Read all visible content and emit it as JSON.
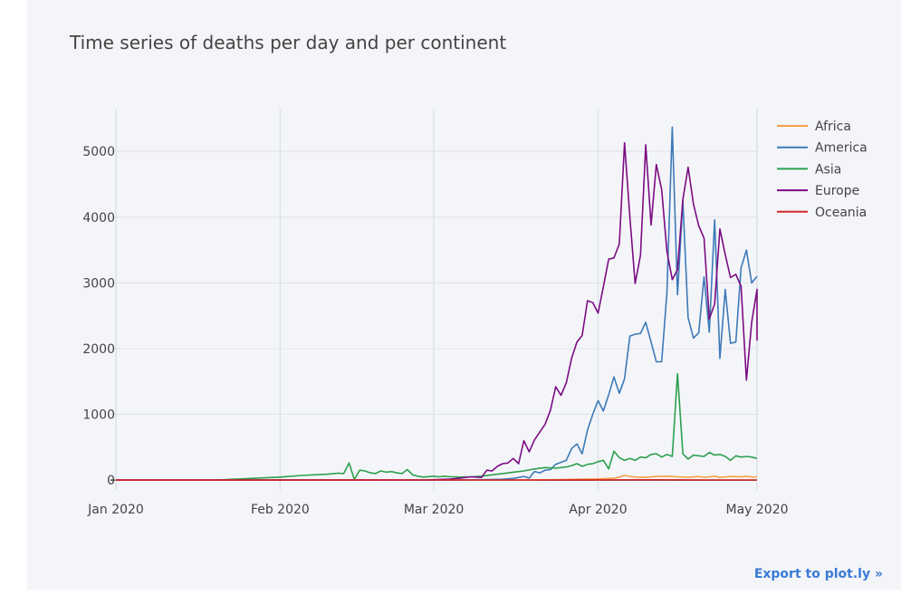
{
  "export_label": "Export to plot.ly »",
  "chart_data": {
    "type": "line",
    "title": "Time series of deaths per day and per continent",
    "xlabel": "",
    "ylabel": "",
    "x_range": [
      "2020-01-01",
      "2020-05-01"
    ],
    "ylim": [
      -150,
      5650
    ],
    "x_ticks": [
      {
        "date": "2020-01-01",
        "label": "Jan 2020"
      },
      {
        "date": "2020-02-01",
        "label": "Feb 2020"
      },
      {
        "date": "2020-03-01",
        "label": "Mar 2020"
      },
      {
        "date": "2020-04-01",
        "label": "Apr 2020"
      },
      {
        "date": "2020-05-01",
        "label": "May 2020"
      }
    ],
    "y_ticks": [
      0,
      1000,
      2000,
      3000,
      4000,
      5000
    ],
    "grid": true,
    "legend_position": "top-right",
    "series": [
      {
        "name": "Africa",
        "color": "#f4a044",
        "points": [
          [
            "2020-01-01",
            0
          ],
          [
            "2020-03-10",
            0
          ],
          [
            "2020-03-20",
            2
          ],
          [
            "2020-03-25",
            8
          ],
          [
            "2020-03-28",
            12
          ],
          [
            "2020-04-01",
            18
          ],
          [
            "2020-04-04",
            28
          ],
          [
            "2020-04-05",
            45
          ],
          [
            "2020-04-06",
            70
          ],
          [
            "2020-04-07",
            55
          ],
          [
            "2020-04-08",
            45
          ],
          [
            "2020-04-10",
            40
          ],
          [
            "2020-04-12",
            55
          ],
          [
            "2020-04-14",
            60
          ],
          [
            "2020-04-16",
            50
          ],
          [
            "2020-04-18",
            42
          ],
          [
            "2020-04-20",
            55
          ],
          [
            "2020-04-21",
            40
          ],
          [
            "2020-04-22",
            50
          ],
          [
            "2020-04-23",
            60
          ],
          [
            "2020-04-24",
            40
          ],
          [
            "2020-04-26",
            55
          ],
          [
            "2020-04-28",
            48
          ],
          [
            "2020-04-29",
            60
          ],
          [
            "2020-04-30",
            45
          ],
          [
            "2020-05-01",
            50
          ]
        ]
      },
      {
        "name": "America",
        "color": "#3d7ab8",
        "points": [
          [
            "2020-01-01",
            0
          ],
          [
            "2020-03-01",
            0
          ],
          [
            "2020-03-06",
            2
          ],
          [
            "2020-03-10",
            5
          ],
          [
            "2020-03-14",
            12
          ],
          [
            "2020-03-16",
            25
          ],
          [
            "2020-03-17",
            40
          ],
          [
            "2020-03-18",
            55
          ],
          [
            "2020-03-19",
            30
          ],
          [
            "2020-03-20",
            130
          ],
          [
            "2020-03-21",
            110
          ],
          [
            "2020-03-22",
            150
          ],
          [
            "2020-03-23",
            160
          ],
          [
            "2020-03-24",
            240
          ],
          [
            "2020-03-25",
            270
          ],
          [
            "2020-03-26",
            300
          ],
          [
            "2020-03-27",
            480
          ],
          [
            "2020-03-28",
            550
          ],
          [
            "2020-03-29",
            400
          ],
          [
            "2020-03-30",
            760
          ],
          [
            "2020-03-31",
            1000
          ],
          [
            "2020-04-01",
            1210
          ],
          [
            "2020-04-02",
            1050
          ],
          [
            "2020-04-03",
            1300
          ],
          [
            "2020-04-04",
            1570
          ],
          [
            "2020-04-05",
            1320
          ],
          [
            "2020-04-06",
            1540
          ],
          [
            "2020-04-07",
            2190
          ],
          [
            "2020-04-08",
            2220
          ],
          [
            "2020-04-09",
            2230
          ],
          [
            "2020-04-10",
            2400
          ],
          [
            "2020-04-11",
            2100
          ],
          [
            "2020-04-12",
            1800
          ],
          [
            "2020-04-13",
            1800
          ],
          [
            "2020-04-14",
            2850
          ],
          [
            "2020-04-15",
            5370
          ],
          [
            "2020-04-16",
            2820
          ],
          [
            "2020-04-17",
            4250
          ],
          [
            "2020-04-18",
            2470
          ],
          [
            "2020-04-19",
            2160
          ],
          [
            "2020-04-20",
            2240
          ],
          [
            "2020-04-21",
            3090
          ],
          [
            "2020-04-22",
            2250
          ],
          [
            "2020-04-23",
            3960
          ],
          [
            "2020-04-24",
            1850
          ],
          [
            "2020-04-25",
            2900
          ],
          [
            "2020-04-26",
            2080
          ],
          [
            "2020-04-27",
            2100
          ],
          [
            "2020-04-28",
            3230
          ],
          [
            "2020-04-29",
            3500
          ],
          [
            "2020-04-30",
            3000
          ],
          [
            "2020-05-01",
            3100
          ]
        ]
      },
      {
        "name": "Asia",
        "color": "#2ca04c",
        "points": [
          [
            "2020-01-01",
            0
          ],
          [
            "2020-01-20",
            2
          ],
          [
            "2020-01-25",
            20
          ],
          [
            "2020-02-01",
            45
          ],
          [
            "2020-02-05",
            70
          ],
          [
            "2020-02-10",
            90
          ],
          [
            "2020-02-12",
            105
          ],
          [
            "2020-02-13",
            100
          ],
          [
            "2020-02-14",
            260
          ],
          [
            "2020-02-15",
            10
          ],
          [
            "2020-02-16",
            150
          ],
          [
            "2020-02-17",
            140
          ],
          [
            "2020-02-18",
            110
          ],
          [
            "2020-02-19",
            100
          ],
          [
            "2020-02-20",
            140
          ],
          [
            "2020-02-21",
            120
          ],
          [
            "2020-02-22",
            130
          ],
          [
            "2020-02-23",
            110
          ],
          [
            "2020-02-24",
            100
          ],
          [
            "2020-02-25",
            160
          ],
          [
            "2020-02-26",
            80
          ],
          [
            "2020-02-27",
            60
          ],
          [
            "2020-02-28",
            45
          ],
          [
            "2020-03-01",
            60
          ],
          [
            "2020-03-02",
            50
          ],
          [
            "2020-03-03",
            60
          ],
          [
            "2020-03-04",
            50
          ],
          [
            "2020-03-05",
            50
          ],
          [
            "2020-03-06",
            45
          ],
          [
            "2020-03-08",
            50
          ],
          [
            "2020-03-10",
            60
          ],
          [
            "2020-03-12",
            80
          ],
          [
            "2020-03-14",
            100
          ],
          [
            "2020-03-16",
            120
          ],
          [
            "2020-03-18",
            140
          ],
          [
            "2020-03-20",
            170
          ],
          [
            "2020-03-22",
            190
          ],
          [
            "2020-03-24",
            180
          ],
          [
            "2020-03-26",
            200
          ],
          [
            "2020-03-27",
            220
          ],
          [
            "2020-03-28",
            250
          ],
          [
            "2020-03-29",
            210
          ],
          [
            "2020-03-30",
            240
          ],
          [
            "2020-03-31",
            250
          ],
          [
            "2020-04-01",
            280
          ],
          [
            "2020-04-02",
            300
          ],
          [
            "2020-04-03",
            170
          ],
          [
            "2020-04-04",
            440
          ],
          [
            "2020-04-05",
            340
          ],
          [
            "2020-04-06",
            300
          ],
          [
            "2020-04-07",
            330
          ],
          [
            "2020-04-08",
            300
          ],
          [
            "2020-04-09",
            350
          ],
          [
            "2020-04-10",
            340
          ],
          [
            "2020-04-11",
            390
          ],
          [
            "2020-04-12",
            400
          ],
          [
            "2020-04-13",
            350
          ],
          [
            "2020-04-14",
            390
          ],
          [
            "2020-04-15",
            360
          ],
          [
            "2020-04-16",
            1620
          ],
          [
            "2020-04-17",
            400
          ],
          [
            "2020-04-18",
            320
          ],
          [
            "2020-04-19",
            380
          ],
          [
            "2020-04-20",
            370
          ],
          [
            "2020-04-21",
            360
          ],
          [
            "2020-04-22",
            420
          ],
          [
            "2020-04-23",
            380
          ],
          [
            "2020-04-24",
            390
          ],
          [
            "2020-04-25",
            360
          ],
          [
            "2020-04-26",
            300
          ],
          [
            "2020-04-27",
            370
          ],
          [
            "2020-04-28",
            350
          ],
          [
            "2020-04-29",
            360
          ],
          [
            "2020-04-30",
            350
          ],
          [
            "2020-05-01",
            330
          ]
        ]
      },
      {
        "name": "Europe",
        "color": "#7b0c82",
        "points": [
          [
            "2020-01-01",
            0
          ],
          [
            "2020-02-20",
            0
          ],
          [
            "2020-02-28",
            2
          ],
          [
            "2020-03-01",
            5
          ],
          [
            "2020-03-04",
            15
          ],
          [
            "2020-03-06",
            30
          ],
          [
            "2020-03-08",
            50
          ],
          [
            "2020-03-10",
            40
          ],
          [
            "2020-03-11",
            150
          ],
          [
            "2020-03-12",
            140
          ],
          [
            "2020-03-13",
            210
          ],
          [
            "2020-03-14",
            250
          ],
          [
            "2020-03-15",
            260
          ],
          [
            "2020-03-16",
            330
          ],
          [
            "2020-03-17",
            250
          ],
          [
            "2020-03-18",
            600
          ],
          [
            "2020-03-19",
            430
          ],
          [
            "2020-03-20",
            610
          ],
          [
            "2020-03-21",
            730
          ],
          [
            "2020-03-22",
            850
          ],
          [
            "2020-03-23",
            1060
          ],
          [
            "2020-03-24",
            1420
          ],
          [
            "2020-03-25",
            1290
          ],
          [
            "2020-03-26",
            1480
          ],
          [
            "2020-03-27",
            1850
          ],
          [
            "2020-03-28",
            2100
          ],
          [
            "2020-03-29",
            2200
          ],
          [
            "2020-03-30",
            2730
          ],
          [
            "2020-03-31",
            2700
          ],
          [
            "2020-04-01",
            2540
          ],
          [
            "2020-04-02",
            2940
          ],
          [
            "2020-04-03",
            3360
          ],
          [
            "2020-04-04",
            3380
          ],
          [
            "2020-04-05",
            3590
          ],
          [
            "2020-04-06",
            5130
          ],
          [
            "2020-04-07",
            4000
          ],
          [
            "2020-04-08",
            2990
          ],
          [
            "2020-04-09",
            3420
          ],
          [
            "2020-04-10",
            5100
          ],
          [
            "2020-04-11",
            3880
          ],
          [
            "2020-04-12",
            4800
          ],
          [
            "2020-04-13",
            4420
          ],
          [
            "2020-04-14",
            3480
          ],
          [
            "2020-04-15",
            3050
          ],
          [
            "2020-04-16",
            3200
          ],
          [
            "2020-04-17",
            4270
          ],
          [
            "2020-04-18",
            4760
          ],
          [
            "2020-04-19",
            4200
          ],
          [
            "2020-04-20",
            3870
          ],
          [
            "2020-04-21",
            3680
          ],
          [
            "2020-04-22",
            2450
          ],
          [
            "2020-04-23",
            2680
          ],
          [
            "2020-04-24",
            3820
          ],
          [
            "2020-04-25",
            3430
          ],
          [
            "2020-04-26",
            3080
          ],
          [
            "2020-04-27",
            3130
          ],
          [
            "2020-04-28",
            2950
          ],
          [
            "2020-04-29",
            1520
          ],
          [
            "2020-04-30",
            2400
          ],
          [
            "2020-05-01",
            2900
          ],
          [
            "2020-05-02",
            2450
          ],
          [
            "2020-05-03",
            2130
          ],
          [
            "2020-05-04",
            2360
          ]
        ]
      },
      {
        "name": "Oceania",
        "color": "#d62728",
        "points": [
          [
            "2020-01-01",
            0
          ],
          [
            "2020-03-15",
            1
          ],
          [
            "2020-04-01",
            3
          ],
          [
            "2020-04-10",
            4
          ],
          [
            "2020-04-20",
            2
          ],
          [
            "2020-05-01",
            1
          ]
        ]
      }
    ]
  }
}
